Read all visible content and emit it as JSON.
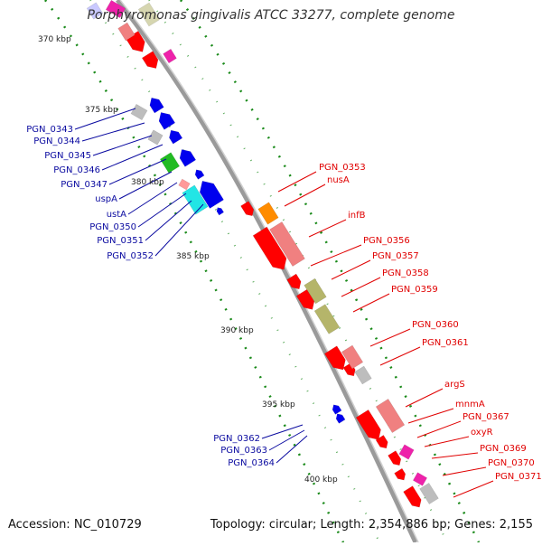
{
  "title": "Porphyromonas gingivalis ATCC 33277, complete genome",
  "footer": {
    "accession": "Accession: NC_010729",
    "topology": "Topology: circular; Length: 2,354,886 bp; Genes: 2,155"
  },
  "scale_marks": [
    "370 kbp",
    "375 kbp",
    "380 kbp",
    "385 kbp",
    "390 kbp",
    "395 kbp",
    "400 kbp"
  ],
  "left_genes": [
    "PGN_0343",
    "PGN_0344",
    "PGN_0345",
    "PGN_0346",
    "PGN_0347",
    "uspA",
    "ustA",
    "PGN_0350",
    "PGN_0351",
    "PGN_0352"
  ],
  "left_genes_bottom": [
    "PGN_0362",
    "PGN_0363",
    "PGN_0364"
  ],
  "right_genes": [
    "PGN_0353",
    "nusA",
    "infB",
    "PGN_0356",
    "PGN_0357",
    "PGN_0358",
    "PGN_0359",
    "PGN_0360",
    "PGN_0361",
    "argS",
    "mnmA",
    "PGN_0367",
    "oxyR",
    "PGN_0369",
    "PGN_0370",
    "PGN_0371"
  ],
  "colors": {
    "forward_label": "#e00000",
    "reverse_label": "#0a0aa0",
    "backbone": "#8a8a8a",
    "ticks": "#1a8a1a",
    "red": "#ff0000",
    "blue": "#0000ee",
    "salmon": "#f08080",
    "olive": "#b5b56a",
    "gray": "#bdbdbd",
    "green": "#22bb22",
    "cyan": "#22e5e5",
    "orange": "#ff8c00",
    "pink": "#ee22aa"
  }
}
